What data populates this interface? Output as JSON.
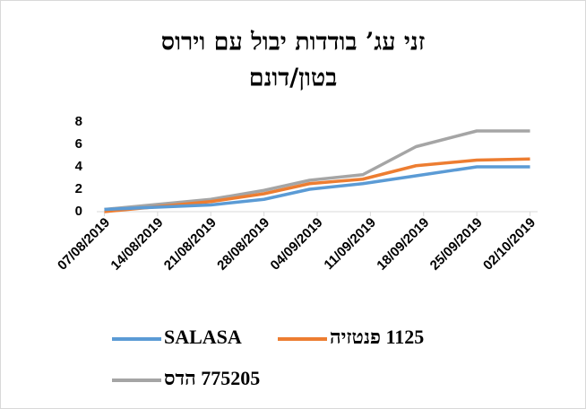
{
  "chart_data": {
    "type": "line",
    "title": [
      "זני עג’ בודדות יבול עם וירוס",
      "בטון/דונם"
    ],
    "x": [
      "2019-08-07",
      "2019-08-21",
      "2019-08-28",
      "2019-09-03",
      "2019-09-10",
      "2019-09-17",
      "2019-09-25",
      "2019-10-02"
    ],
    "series": [
      {
        "name": "SALASA",
        "color": "#5b9bd5",
        "values": [
          0.2,
          0.6,
          1.1,
          2.0,
          2.5,
          3.2,
          4.0,
          4.0
        ]
      },
      {
        "name": "1125 פנטזיה",
        "color": "#ed7d31",
        "values": [
          0,
          0.9,
          1.6,
          2.5,
          2.9,
          4.1,
          4.6,
          4.7
        ]
      },
      {
        "name": "775205 הדס",
        "color": "#a5a5a5",
        "values": [
          0.2,
          1.1,
          1.9,
          2.8,
          3.3,
          5.8,
          7.2,
          7.2
        ]
      }
    ],
    "xlim": [
      "2019-08-06",
      "2019-10-03"
    ],
    "xticks": [
      {
        "value": "2019-08-07",
        "label": "07/08/2019"
      },
      {
        "value": "2019-08-14",
        "label": "14/08/2019"
      },
      {
        "value": "2019-08-21",
        "label": "21/08/2019"
      },
      {
        "value": "2019-08-28",
        "label": "28/08/2019"
      },
      {
        "value": "2019-09-04",
        "label": "04/09/2019"
      },
      {
        "value": "2019-09-11",
        "label": "11/09/2019"
      },
      {
        "value": "2019-09-18",
        "label": "18/09/2019"
      },
      {
        "value": "2019-09-25",
        "label": "25/09/2019"
      },
      {
        "value": "2019-10-02",
        "label": "02/10/2019"
      }
    ],
    "ylim": [
      0,
      8
    ],
    "yticks": [
      0,
      2,
      4,
      6,
      8
    ]
  }
}
